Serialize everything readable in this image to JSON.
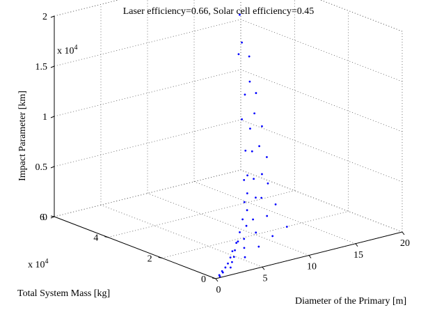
{
  "chart_data": {
    "type": "scatter",
    "subtype": "3d",
    "title": "Laser efficiency=0.66, Solar cell efficiency=0.45",
    "xlabel": "Diameter of the Primary [m]",
    "ylabel": "Total System Mass [kg]",
    "zlabel": "Impact Parameter [km]",
    "x_ticks": [
      "0",
      "5",
      "10",
      "15",
      "20"
    ],
    "y_ticks": [
      "0",
      "2",
      "4",
      "6"
    ],
    "z_ticks": [
      "0",
      "0.5",
      "1",
      "1.5",
      "2"
    ],
    "y_exponent": {
      "base": "x 10",
      "power": "4"
    },
    "z_exponent": {
      "base": "x 10",
      "power": "4"
    },
    "xlim": [
      0,
      20
    ],
    "ylim": [
      0,
      60000
    ],
    "zlim": [
      0,
      20000
    ],
    "grid": true,
    "marker_color": "#0000ff",
    "series": [
      {
        "points": [
          [
            0.5,
            200,
            100
          ],
          [
            2,
            1400,
            500
          ],
          [
            4,
            3000,
            900
          ],
          [
            6,
            4800,
            1300
          ],
          [
            8,
            6600,
            1700
          ],
          [
            10,
            8200,
            2000
          ]
        ]
      },
      {
        "points": [
          [
            0.5,
            400,
            200
          ],
          [
            2.5,
            2600,
            800
          ],
          [
            4.5,
            5000,
            1500
          ],
          [
            6.5,
            7600,
            2300
          ],
          [
            8.5,
            10400,
            3200
          ],
          [
            10,
            12400,
            3800
          ]
        ]
      },
      {
        "points": [
          [
            1,
            800,
            300
          ],
          [
            3,
            3600,
            1100
          ],
          [
            5,
            6800,
            2100
          ],
          [
            7,
            10400,
            3200
          ],
          [
            9,
            14200,
            4500
          ],
          [
            10.5,
            17000,
            5300
          ]
        ]
      },
      {
        "points": [
          [
            1,
            1100,
            400
          ],
          [
            3.5,
            5000,
            1500
          ],
          [
            6,
            9400,
            2900
          ],
          [
            8.5,
            14600,
            4600
          ],
          [
            10.5,
            19200,
            6000
          ],
          [
            12,
            22600,
            7000
          ]
        ]
      },
      {
        "points": [
          [
            1.5,
            1600,
            600
          ],
          [
            4,
            6200,
            2000
          ],
          [
            7,
            12600,
            3900
          ],
          [
            9.5,
            18800,
            5800
          ],
          [
            12,
            25400,
            7800
          ],
          [
            13.5,
            29600,
            9000
          ]
        ]
      },
      {
        "points": [
          [
            2,
            2400,
            800
          ],
          [
            5,
            8400,
            2600
          ],
          [
            8,
            16000,
            5000
          ],
          [
            11,
            24600,
            7600
          ],
          [
            13.5,
            32400,
            10000
          ],
          [
            15,
            37000,
            11200
          ]
        ]
      },
      {
        "points": [
          [
            2.5,
            3200,
            1200
          ],
          [
            6,
            10800,
            3400
          ],
          [
            9,
            19400,
            6200
          ],
          [
            12,
            28800,
            9200
          ],
          [
            14.5,
            37600,
            12400
          ],
          [
            16,
            43000,
            14000
          ]
        ]
      },
      {
        "points": [
          [
            3,
            4200,
            1600
          ],
          [
            7,
            13600,
            4600
          ],
          [
            10,
            23600,
            8000
          ],
          [
            13,
            34200,
            11800
          ],
          [
            15.5,
            44000,
            15400
          ],
          [
            17,
            50000,
            17200
          ]
        ]
      },
      {
        "points": [
          [
            4,
            5600,
            2200
          ],
          [
            8,
            17200,
            6200
          ],
          [
            11,
            28400,
            10400
          ],
          [
            14,
            40000,
            15000
          ],
          [
            16.5,
            50600,
            19000
          ],
          [
            18,
            56000,
            20800
          ]
        ]
      }
    ]
  }
}
